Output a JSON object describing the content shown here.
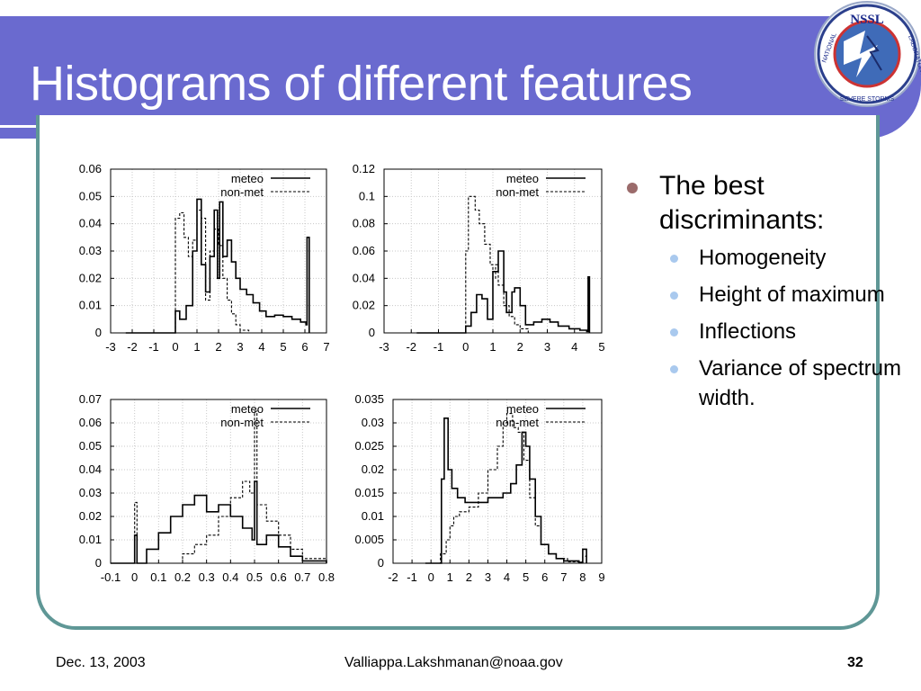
{
  "slide": {
    "title": "Histograms of different features",
    "bullet_main": "The best discriminants:",
    "sub_bullets": [
      "Homogeneity",
      "Height of maximum",
      "Inflections",
      "Variance of spectrum width."
    ]
  },
  "logo": {
    "text_top": "NSSL",
    "text_ring_left": "NATIONAL",
    "text_ring_bottom": "SEVERE STORMS",
    "text_ring_right": "LABORATORY"
  },
  "footer": {
    "date": "Dec. 13, 2003",
    "email": "Valliappa.Lakshmanan@noaa.gov",
    "page": "32"
  },
  "colors": {
    "title_band": "#6a6acf",
    "frame": "#5f9796",
    "bullet_main": "#9b6b6b",
    "bullet_sub": "#a9c9ee"
  },
  "chart_data": [
    {
      "type": "line",
      "legend_position": "top-right",
      "grid": true,
      "xlim": [
        -3,
        7
      ],
      "ylim": [
        0,
        0.06
      ],
      "xticks": [
        "-3",
        "-2",
        "-1",
        "0",
        "1",
        "2",
        "3",
        "4",
        "5",
        "6",
        "7"
      ],
      "yticks": [
        "0",
        "0.01",
        "0.02",
        "0.03",
        "0.04",
        "0.05",
        "0.06"
      ],
      "series": [
        {
          "name": "meteo",
          "style": "solid",
          "points": [
            [
              -2.3,
              0
            ],
            [
              0,
              0
            ],
            [
              0,
              0.008
            ],
            [
              0.2,
              0.005
            ],
            [
              0.5,
              0.01
            ],
            [
              0.8,
              0.03
            ],
            [
              1.0,
              0.049
            ],
            [
              1.2,
              0.025
            ],
            [
              1.4,
              0.015
            ],
            [
              1.6,
              0.028
            ],
            [
              1.8,
              0.045
            ],
            [
              1.95,
              0.02
            ],
            [
              2.05,
              0.048
            ],
            [
              2.2,
              0.028
            ],
            [
              2.4,
              0.034
            ],
            [
              2.6,
              0.026
            ],
            [
              2.8,
              0.02
            ],
            [
              3.0,
              0.016
            ],
            [
              3.3,
              0.014
            ],
            [
              3.6,
              0.011
            ],
            [
              3.9,
              0.008
            ],
            [
              4.2,
              0.006
            ],
            [
              4.6,
              0.0065
            ],
            [
              5.0,
              0.006
            ],
            [
              5.4,
              0.005
            ],
            [
              5.8,
              0.004
            ],
            [
              6.05,
              0.003
            ],
            [
              6.1,
              0.035
            ],
            [
              6.2,
              0
            ]
          ]
        },
        {
          "name": "non-met",
          "style": "dashed",
          "points": [
            [
              -2.3,
              0
            ],
            [
              0,
              0
            ],
            [
              0,
              0.042
            ],
            [
              0.2,
              0.044
            ],
            [
              0.4,
              0.035
            ],
            [
              0.6,
              0.028
            ],
            [
              0.8,
              0.034
            ],
            [
              1.0,
              0.045
            ],
            [
              1.2,
              0.042
            ],
            [
              1.4,
              0.012
            ],
            [
              1.6,
              0.03
            ],
            [
              1.8,
              0.038
            ],
            [
              2.0,
              0.032
            ],
            [
              2.2,
              0.02
            ],
            [
              2.4,
              0.012
            ],
            [
              2.6,
              0.007
            ],
            [
              2.8,
              0.003
            ],
            [
              3.0,
              0.001
            ],
            [
              3.4,
              0
            ],
            [
              6.2,
              0
            ]
          ]
        }
      ]
    },
    {
      "type": "line",
      "legend_position": "top-right",
      "grid": true,
      "xlim": [
        -3,
        5
      ],
      "ylim": [
        0,
        0.12
      ],
      "xticks": [
        "-3",
        "-2",
        "-1",
        "0",
        "1",
        "2",
        "3",
        "4",
        "5"
      ],
      "yticks": [
        "0",
        "0.02",
        "0.04",
        "0.06",
        "0.08",
        "0.1",
        "0.12"
      ],
      "series": [
        {
          "name": "meteo",
          "style": "solid",
          "points": [
            [
              -1.8,
              0
            ],
            [
              0,
              0
            ],
            [
              0,
              0.005
            ],
            [
              0.2,
              0.015
            ],
            [
              0.4,
              0.028
            ],
            [
              0.6,
              0.025
            ],
            [
              0.8,
              0.01
            ],
            [
              1.0,
              0.045
            ],
            [
              1.2,
              0.06
            ],
            [
              1.4,
              0.03
            ],
            [
              1.5,
              0.015
            ],
            [
              1.7,
              0.03
            ],
            [
              1.8,
              0.033
            ],
            [
              2.0,
              0.02
            ],
            [
              2.2,
              0.006
            ],
            [
              2.5,
              0.008
            ],
            [
              2.8,
              0.01
            ],
            [
              3.1,
              0.008
            ],
            [
              3.4,
              0.005
            ],
            [
              3.8,
              0.003
            ],
            [
              4.2,
              0.002
            ],
            [
              4.45,
              0.001
            ],
            [
              4.5,
              0.041
            ],
            [
              4.55,
              0
            ]
          ]
        },
        {
          "name": "non-met",
          "style": "dashed",
          "points": [
            [
              -1.8,
              0
            ],
            [
              0,
              0
            ],
            [
              0,
              0.06
            ],
            [
              0.1,
              0.1
            ],
            [
              0.2,
              0.1
            ],
            [
              0.35,
              0.09
            ],
            [
              0.5,
              0.08
            ],
            [
              0.7,
              0.065
            ],
            [
              0.9,
              0.05
            ],
            [
              1.0,
              0.04
            ],
            [
              1.1,
              0.05
            ],
            [
              1.2,
              0.035
            ],
            [
              1.4,
              0.02
            ],
            [
              1.6,
              0.012
            ],
            [
              1.8,
              0.006
            ],
            [
              2.0,
              0.003
            ],
            [
              2.3,
              0
            ],
            [
              4.55,
              0
            ]
          ]
        }
      ]
    },
    {
      "type": "line",
      "legend_position": "top-right",
      "grid": true,
      "xlim": [
        -0.1,
        0.8
      ],
      "ylim": [
        0,
        0.07
      ],
      "xticks": [
        "-0.1",
        "0",
        "0.1",
        "0.2",
        "0.3",
        "0.4",
        "0.5",
        "0.6",
        "0.7",
        "0.8"
      ],
      "yticks": [
        "0",
        "0.01",
        "0.02",
        "0.03",
        "0.04",
        "0.05",
        "0.06",
        "0.07"
      ],
      "series": [
        {
          "name": "meteo",
          "style": "solid",
          "points": [
            [
              -0.1,
              0
            ],
            [
              0,
              0
            ],
            [
              0,
              0.012
            ],
            [
              0.01,
              0
            ],
            [
              0.05,
              0.006
            ],
            [
              0.1,
              0.013
            ],
            [
              0.15,
              0.02
            ],
            [
              0.2,
              0.025
            ],
            [
              0.25,
              0.029
            ],
            [
              0.3,
              0.022
            ],
            [
              0.35,
              0.025
            ],
            [
              0.4,
              0.02
            ],
            [
              0.45,
              0.015
            ],
            [
              0.49,
              0.01
            ],
            [
              0.5,
              0.035
            ],
            [
              0.51,
              0.008
            ],
            [
              0.55,
              0.012
            ],
            [
              0.6,
              0.007
            ],
            [
              0.65,
              0.003
            ],
            [
              0.7,
              0.001
            ],
            [
              0.8,
              0
            ]
          ]
        },
        {
          "name": "non-met",
          "style": "dashed",
          "points": [
            [
              -0.1,
              0
            ],
            [
              0,
              0
            ],
            [
              0,
              0.026
            ],
            [
              0.01,
              0
            ],
            [
              0.15,
              0
            ],
            [
              0.2,
              0.004
            ],
            [
              0.25,
              0.008
            ],
            [
              0.3,
              0.012
            ],
            [
              0.35,
              0.02
            ],
            [
              0.4,
              0.028
            ],
            [
              0.45,
              0.035
            ],
            [
              0.48,
              0.03
            ],
            [
              0.5,
              0.065
            ],
            [
              0.51,
              0.025
            ],
            [
              0.55,
              0.018
            ],
            [
              0.6,
              0.012
            ],
            [
              0.65,
              0.006
            ],
            [
              0.7,
              0.002
            ],
            [
              0.8,
              0
            ]
          ]
        }
      ]
    },
    {
      "type": "line",
      "legend_position": "top-right",
      "grid": true,
      "xlim": [
        -2,
        9
      ],
      "ylim": [
        0,
        0.035
      ],
      "xticks": [
        "-2",
        "-1",
        "0",
        "1",
        "2",
        "3",
        "4",
        "5",
        "6",
        "7",
        "8",
        "9"
      ],
      "yticks": [
        "0",
        "0.005",
        "0.01",
        "0.015",
        "0.02",
        "0.025",
        "0.03",
        "0.035"
      ],
      "series": [
        {
          "name": "meteo",
          "style": "solid",
          "points": [
            [
              -0.3,
              0
            ],
            [
              0.3,
              0
            ],
            [
              0.55,
              0.018
            ],
            [
              0.7,
              0.031
            ],
            [
              0.9,
              0.02
            ],
            [
              1.1,
              0.016
            ],
            [
              1.4,
              0.014
            ],
            [
              1.8,
              0.013
            ],
            [
              2.2,
              0.013
            ],
            [
              2.6,
              0.013
            ],
            [
              3.0,
              0.014
            ],
            [
              3.4,
              0.014
            ],
            [
              3.8,
              0.015
            ],
            [
              4.2,
              0.017
            ],
            [
              4.5,
              0.021
            ],
            [
              4.8,
              0.028
            ],
            [
              5.0,
              0.025
            ],
            [
              5.2,
              0.018
            ],
            [
              5.5,
              0.01
            ],
            [
              5.8,
              0.004
            ],
            [
              6.2,
              0.002
            ],
            [
              6.6,
              0.001
            ],
            [
              7.0,
              0.0005
            ],
            [
              7.8,
              0.0002
            ],
            [
              8.0,
              0.003
            ],
            [
              8.2,
              0
            ]
          ]
        },
        {
          "name": "non-met",
          "style": "dashed",
          "points": [
            [
              -0.3,
              0
            ],
            [
              0.2,
              0
            ],
            [
              0.5,
              0.002
            ],
            [
              0.8,
              0.005
            ],
            [
              1.0,
              0.008
            ],
            [
              1.2,
              0.01
            ],
            [
              1.5,
              0.011
            ],
            [
              2.0,
              0.012
            ],
            [
              2.5,
              0.015
            ],
            [
              3.0,
              0.02
            ],
            [
              3.5,
              0.025
            ],
            [
              3.8,
              0.03
            ],
            [
              4.0,
              0.032
            ],
            [
              4.3,
              0.029
            ],
            [
              4.6,
              0.028
            ],
            [
              4.9,
              0.022
            ],
            [
              5.2,
              0.014
            ],
            [
              5.5,
              0.008
            ],
            [
              5.8,
              0.004
            ],
            [
              6.2,
              0.002
            ],
            [
              6.6,
              0.001
            ],
            [
              7.2,
              0.0003
            ],
            [
              8.0,
              0.0015
            ],
            [
              8.2,
              0
            ]
          ]
        }
      ]
    }
  ]
}
